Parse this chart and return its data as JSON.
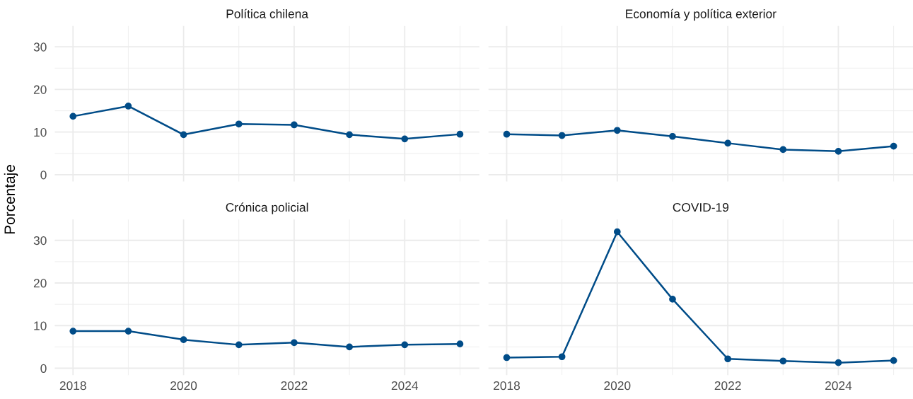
{
  "chart_data": [
    {
      "type": "line",
      "title": "Política chilena",
      "ylabel": "Porcentaje",
      "x": [
        2018,
        2019,
        2020,
        2021,
        2022,
        2023,
        2024,
        2025
      ],
      "series": [
        {
          "color": "#004c88",
          "values": [
            13.7,
            16.1,
            9.4,
            11.9,
            11.7,
            9.4,
            8.4,
            9.5
          ]
        }
      ],
      "xlim": [
        2017.67,
        2025.35
      ],
      "xticks": [
        2018,
        2020,
        2022,
        2024
      ],
      "ylim": [
        -1.6,
        34.9
      ],
      "yticks": [
        0,
        10,
        20,
        30
      ],
      "tick_labels": "y",
      "grid": true,
      "marker": "circle",
      "line_style": "solid"
    },
    {
      "type": "line",
      "title": "Economía y política exterior",
      "x": [
        2018,
        2019,
        2020,
        2021,
        2022,
        2023,
        2024,
        2025
      ],
      "series": [
        {
          "color": "#004c88",
          "values": [
            9.5,
            9.2,
            10.4,
            9.0,
            7.4,
            5.9,
            5.5,
            6.7
          ]
        }
      ],
      "xlim": [
        2017.67,
        2025.35
      ],
      "xticks": [
        2018,
        2020,
        2022,
        2024
      ],
      "ylim": [
        -1.6,
        34.9
      ],
      "yticks": [
        0,
        10,
        20,
        30
      ],
      "tick_labels": false,
      "grid": true,
      "marker": "circle",
      "line_style": "solid"
    },
    {
      "type": "line",
      "title": "Crónica policial",
      "x": [
        2018,
        2019,
        2020,
        2021,
        2022,
        2023,
        2024,
        2025
      ],
      "series": [
        {
          "color": "#004c88",
          "values": [
            8.7,
            8.7,
            6.7,
            5.5,
            6.0,
            5.0,
            5.5,
            5.7
          ]
        }
      ],
      "xlim": [
        2017.67,
        2025.35
      ],
      "xticks": [
        2018,
        2020,
        2022,
        2024
      ],
      "ylim": [
        -1.6,
        34.9
      ],
      "yticks": [
        0,
        10,
        20,
        30
      ],
      "grid": true,
      "marker": "circle",
      "line_style": "solid"
    },
    {
      "type": "line",
      "title": "COVID-19",
      "x": [
        2018,
        2019,
        2020,
        2021,
        2022,
        2023,
        2024,
        2025
      ],
      "series": [
        {
          "color": "#004c88",
          "values": [
            2.5,
            2.7,
            32.0,
            16.2,
            2.2,
            1.7,
            1.3,
            1.8
          ]
        }
      ],
      "xlim": [
        2017.67,
        2025.35
      ],
      "xticks": [
        2018,
        2020,
        2022,
        2024
      ],
      "ylim": [
        -1.6,
        34.9
      ],
      "yticks": [
        0,
        10,
        20,
        30
      ],
      "tick_labels": "x",
      "grid": true,
      "marker": "circle",
      "line_style": "solid"
    }
  ]
}
